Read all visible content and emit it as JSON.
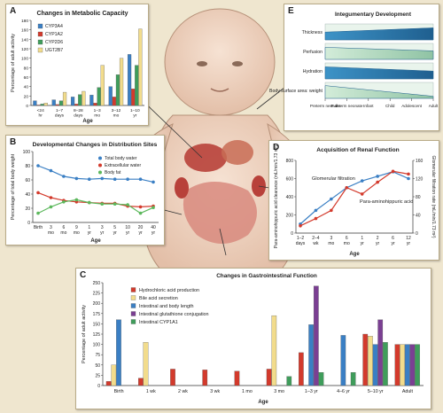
{
  "panels": {
    "A": {
      "letter": "A",
      "chart_data": {
        "type": "bar",
        "title": "Changes in Metabolic Capacity",
        "xlabel": "Age",
        "ylabel": "Percentage of adult activity",
        "ylim": [
          0,
          180
        ],
        "yticks": [
          0,
          20,
          40,
          60,
          80,
          100,
          120,
          140,
          160,
          180
        ],
        "categories": [
          {
            "top": "<24",
            "bottom": "hr"
          },
          {
            "top": "1–7",
            "bottom": "days"
          },
          {
            "top": "8–28",
            "bottom": "days"
          },
          {
            "top": "1–3",
            "bottom": "mo"
          },
          {
            "top": "3–12",
            "bottom": "mo"
          },
          {
            "top": "1–10",
            "bottom": "yr"
          }
        ],
        "series": [
          {
            "name": "CYP3A4",
            "color": "#3a7fc4",
            "values": [
              10,
              12,
              18,
              22,
              40,
              108
            ]
          },
          {
            "name": "CYP1A2",
            "color": "#d33a2c",
            "values": [
              1,
              2,
              3,
              5,
              18,
              35
            ]
          },
          {
            "name": "CYP2D6",
            "color": "#3f9d5b",
            "values": [
              3,
              10,
              23,
              38,
              65,
              85
            ]
          },
          {
            "name": "UGT2B7",
            "color": "#f2dc8c",
            "values": [
              5,
              28,
              30,
              85,
              100,
              162
            ]
          }
        ]
      }
    },
    "B": {
      "letter": "B",
      "chart_data": {
        "type": "line",
        "title": "Developmental Changes in Distribution Sites",
        "xlabel": "Age",
        "ylabel": "Percentage of total body weight",
        "ylim": [
          0,
          100
        ],
        "yticks": [
          0,
          20,
          40,
          60,
          80,
          100
        ],
        "categories": [
          {
            "top": "Birth",
            "bottom": ""
          },
          {
            "top": "3",
            "bottom": "mo"
          },
          {
            "top": "6",
            "bottom": "mo"
          },
          {
            "top": "9",
            "bottom": "mo"
          },
          {
            "top": "1",
            "bottom": "yr"
          },
          {
            "top": "3",
            "bottom": "yr"
          },
          {
            "top": "5",
            "bottom": "yr"
          },
          {
            "top": "10",
            "bottom": "yr"
          },
          {
            "top": "20",
            "bottom": "yr"
          },
          {
            "top": "40",
            "bottom": "yr"
          }
        ],
        "series": [
          {
            "name": "Total body water",
            "color": "#3a7fc4",
            "values": [
              80,
              73,
              65,
              62,
              61,
              62,
              61,
              61,
              61,
              57
            ]
          },
          {
            "name": "Extracellular water",
            "color": "#d33a2c",
            "values": [
              42,
              35,
              31,
              29,
              28,
              27,
              27,
              23,
              22,
              23
            ]
          },
          {
            "name": "Body fat",
            "color": "#5cb85c",
            "values": [
              13,
              22,
              29,
              32,
              28,
              26,
              26,
              25,
              13,
              21
            ]
          }
        ]
      }
    },
    "C": {
      "letter": "C",
      "chart_data": {
        "type": "bar",
        "title": "Changes in Gastrointestinal Function",
        "xlabel": "Age",
        "ylabel": "Percentage of adult activity",
        "ylim": [
          0,
          250
        ],
        "yticks": [
          0,
          25,
          50,
          75,
          100,
          125,
          150,
          175,
          200,
          225,
          250
        ],
        "categories": [
          "Birth",
          "1 wk",
          "2 wk",
          "3 wk",
          "1 mo",
          "3 mo",
          "1–3 yr",
          "4–6 yr",
          "5–10 yr",
          "Adult"
        ],
        "series": [
          {
            "name": "Hydrochloric acid production",
            "color": "#d33a2c",
            "values": [
              10,
              18,
              40,
              38,
              35,
              40,
              80,
              null,
              125,
              100
            ]
          },
          {
            "name": "Bile acid secretion",
            "color": "#f2dc8c",
            "values": [
              50,
              105,
              null,
              null,
              null,
              170,
              null,
              null,
              120,
              100
            ]
          },
          {
            "name": "Intestinal and body length",
            "color": "#3a7fc4",
            "values": [
              160,
              null,
              null,
              null,
              null,
              null,
              148,
              122,
              100,
              100
            ]
          },
          {
            "name": "Intestinal glutathione conjugation",
            "color": "#7b3f93",
            "values": [
              null,
              null,
              null,
              null,
              null,
              null,
              242,
              null,
              160,
              100
            ]
          },
          {
            "name": "Intestinal CYP1A1",
            "color": "#3f9d5b",
            "values": [
              null,
              null,
              null,
              null,
              null,
              22,
              32,
              32,
              105,
              100
            ]
          }
        ]
      }
    },
    "D": {
      "letter": "D",
      "chart_data": {
        "type": "line",
        "title": "Acquisition of Renal Function",
        "xlabel": "Age",
        "ylabel": "Para-aminohippuric acid clearance (mL/min/1.73 m²)",
        "y2label": "Glomerular filtration rate (mL/min/1.73 m²)",
        "ylim": [
          0,
          800
        ],
        "yticks": [
          0,
          200,
          400,
          600,
          800
        ],
        "y2lim": [
          0,
          160
        ],
        "y2ticks": [
          0,
          40,
          80,
          120,
          160
        ],
        "categories": [
          {
            "top": "1–2",
            "bottom": "days"
          },
          {
            "top": "2–4",
            "bottom": "wk"
          },
          {
            "top": "3",
            "bottom": "mo"
          },
          {
            "top": "6",
            "bottom": "mo"
          },
          {
            "top": "1",
            "bottom": "yr"
          },
          {
            "top": "2",
            "bottom": "yr"
          },
          {
            "top": "6",
            "bottom": "yr"
          },
          {
            "top": "12",
            "bottom": "yr"
          }
        ],
        "series": [
          {
            "name": "Glomerular filtration",
            "axis": "right",
            "color": "#3a7fc4",
            "values": [
              20,
              50,
              75,
              100,
              115,
              125,
              135,
              120
            ]
          },
          {
            "name": "Para-aminohippuric acid",
            "axis": "left",
            "color": "#d33a2c",
            "values": [
              80,
              160,
              250,
              500,
              430,
              560,
              680,
              650
            ]
          }
        ],
        "annotations": [
          "Glomerular filtration",
          "Para-aminohippuric acid"
        ]
      }
    },
    "E": {
      "letter": "E",
      "chart_data": {
        "type": "area",
        "title": "Integumentary Development",
        "categories": [
          "Preterm neonate",
          "Full-term neonate",
          "Infant",
          "Child",
          "Adolescent",
          "Adult"
        ],
        "rows": [
          {
            "name": "Thickness",
            "start": 0.55,
            "end": 0.85
          },
          {
            "name": "Perfusion",
            "start": 0.85,
            "end": 0.6
          },
          {
            "name": "Hydration",
            "start": 0.85,
            "end": 0.55
          },
          {
            "name": "Body surface area: weight",
            "start": 0.9,
            "end": 0.15
          }
        ]
      }
    }
  },
  "colors": {
    "background": "#efe6cf",
    "panel": "#ffffff",
    "infant_skin": "#f3d8c6",
    "row_fill_light": "#cfe9d6",
    "row_fill_dark": "#2f7fb6"
  }
}
